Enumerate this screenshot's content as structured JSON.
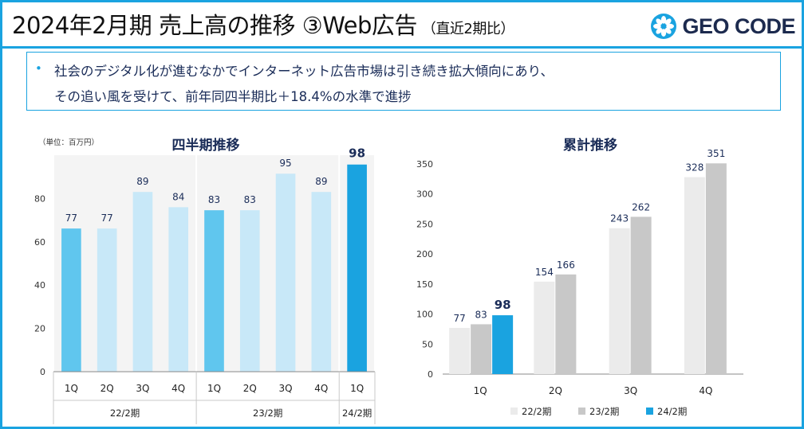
{
  "header": {
    "title": "2024年2月期 売上高の推移 ③Web広告",
    "subtitle": "（直近2期比）",
    "logo_text": "GEO CODE",
    "accent": "#1aa3e0"
  },
  "callout": {
    "bullet": "•",
    "lines": [
      "社会のデジタル化が進むなかでインターネット広告市場は引き続き拡大傾向にあり、",
      "その追い風を受けて、前年同四半期比＋18.4%の水準で進捗"
    ]
  },
  "chart_data": [
    {
      "type": "bar",
      "title": "四半期推移",
      "unit_label": "（単位：百万円）",
      "ylim": [
        0,
        100
      ],
      "yticks": [
        0,
        20,
        40,
        60,
        80
      ],
      "categories": [
        "1Q",
        "2Q",
        "3Q",
        "4Q",
        "1Q",
        "2Q",
        "3Q",
        "4Q",
        "1Q"
      ],
      "values": [
        77,
        77,
        89,
        84,
        83,
        83,
        95,
        89,
        98
      ],
      "groups": [
        {
          "label": "22/2期",
          "start": 0,
          "count": 4,
          "color": "#c8e8f8",
          "highlight_color": "#60c6ee"
        },
        {
          "label": "23/2期",
          "start": 4,
          "count": 4,
          "color": "#c8e8f8",
          "highlight_color": "#60c6ee"
        },
        {
          "label": "24/2期",
          "start": 8,
          "count": 1,
          "color": "#1aa3e0",
          "highlight_color": "#1aa3e0"
        }
      ],
      "highlight_indices": [
        0,
        4,
        8
      ],
      "bold_value_index": 8,
      "colors": {
        "text": "#1a2c58",
        "axis": "#333333"
      }
    },
    {
      "type": "bar",
      "title": "累計推移",
      "ylim": [
        0,
        350
      ],
      "yticks": [
        0,
        50,
        100,
        150,
        200,
        250,
        300,
        350
      ],
      "categories": [
        "1Q",
        "2Q",
        "3Q",
        "4Q"
      ],
      "series": [
        {
          "name": "22/2期",
          "values": [
            77,
            154,
            243,
            328
          ],
          "color": "#ebebeb"
        },
        {
          "name": "23/2期",
          "values": [
            83,
            166,
            262,
            351
          ],
          "color": "#c8c8c8"
        },
        {
          "name": "24/2期",
          "values": [
            98,
            null,
            null,
            null
          ],
          "color": "#1aa3e0"
        }
      ],
      "bold_series": "24/2期",
      "legend_position": "bottom",
      "colors": {
        "text": "#1a2c58",
        "axis": "#333333"
      }
    }
  ]
}
